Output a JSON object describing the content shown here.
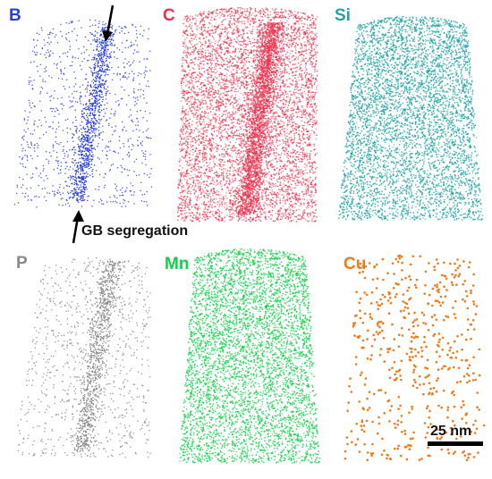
{
  "panels": [
    {
      "id": "B",
      "label": "B",
      "color": "#2a3fe0",
      "density": "sparse-with-gb-band"
    },
    {
      "id": "C",
      "label": "C",
      "color": "#e8324d",
      "density": "dense-with-gb-band"
    },
    {
      "id": "Si",
      "label": "Si",
      "color": "#1fa3a3",
      "density": "dense-uniform"
    },
    {
      "id": "P",
      "label": "P",
      "color": "#8a8a8a",
      "density": "sparse-with-gb-band"
    },
    {
      "id": "Mn",
      "label": "Mn",
      "color": "#10d048",
      "density": "dense-uniform"
    },
    {
      "id": "Cu",
      "label": "Cu",
      "color": "#f07a1a",
      "density": "sparse-uniform"
    }
  ],
  "annotation": {
    "text": "GB segregation"
  },
  "scale_bar": {
    "label": "25 nm"
  }
}
